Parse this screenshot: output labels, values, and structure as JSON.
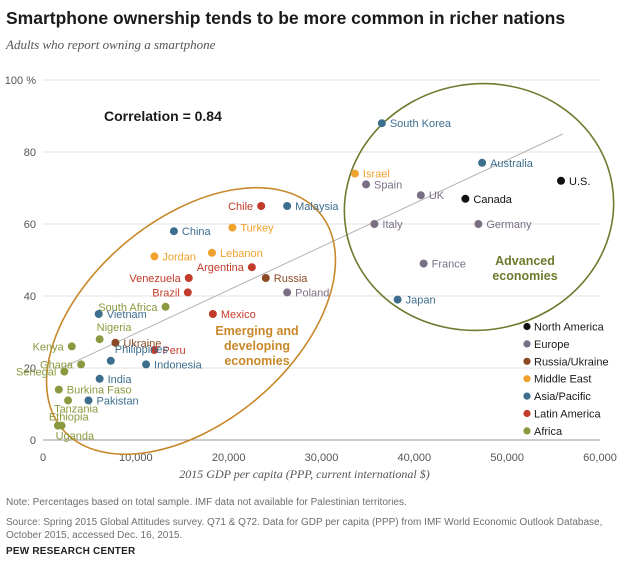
{
  "title": "Smartphone ownership tends to be more common in richer nations",
  "subtitle": "Adults who report owning a smartphone",
  "note": "Note: Percentages based on total sample. IMF data not available for Palestinian territories.",
  "source": "Source: Spring 2015 Global Attitudes survey. Q71 & Q72. Data for GDP per capita (PPP) from IMF World Economic Outlook Database, October 2015, accessed Dec. 16, 2015.",
  "brand": "PEW RESEARCH CENTER",
  "chart_data": {
    "type": "scatter",
    "title": "Smartphone ownership tends to be more common in richer nations",
    "xlabel": "2015 GDP per capita (PPP, current international $)",
    "ylabel": "Adults who report owning a smartphone",
    "xlim": [
      0,
      60000
    ],
    "ylim": [
      0,
      100
    ],
    "x_ticks": [
      0,
      10000,
      20000,
      30000,
      40000,
      50000,
      60000
    ],
    "x_tick_labels": [
      "0",
      "10,000",
      "20,000",
      "30,000",
      "40,000",
      "50,000",
      "60,000"
    ],
    "y_ticks": [
      0,
      20,
      40,
      60,
      80,
      100
    ],
    "y_tick_labels": [
      "0",
      "20",
      "40",
      "60",
      "80",
      "100 %"
    ],
    "grid": "horizontal",
    "annotation": "Correlation = 0.84",
    "trendline": {
      "x": [
        2000,
        56000
      ],
      "y": [
        20,
        85
      ]
    },
    "groups": [
      {
        "label": "Emerging and developing economies",
        "color": "#c8882a"
      },
      {
        "label": "Advanced economies",
        "color": "#6e7a2e"
      }
    ],
    "legend": {
      "position": "right",
      "entries": [
        {
          "name": "North America",
          "color": "#111111"
        },
        {
          "name": "Europe",
          "color": "#7a6e84"
        },
        {
          "name": "Russia/Ukraine",
          "color": "#8b4a24"
        },
        {
          "name": "Middle East",
          "color": "#f0a22e"
        },
        {
          "name": "Asia/Pacific",
          "color": "#3d6e8e"
        },
        {
          "name": "Latin America",
          "color": "#c23b2b"
        },
        {
          "name": "Africa",
          "color": "#8b9a40"
        }
      ]
    },
    "points": [
      {
        "name": "U.S.",
        "region": "North America",
        "x": 55800,
        "y": 72
      },
      {
        "name": "Canada",
        "region": "North America",
        "x": 45500,
        "y": 67
      },
      {
        "name": "Australia",
        "region": "Asia/Pacific",
        "x": 47300,
        "y": 77
      },
      {
        "name": "South Korea",
        "region": "Asia/Pacific",
        "x": 36500,
        "y": 88
      },
      {
        "name": "Japan",
        "region": "Asia/Pacific",
        "x": 38200,
        "y": 39
      },
      {
        "name": "Israel",
        "region": "Middle East",
        "x": 33600,
        "y": 74
      },
      {
        "name": "Spain",
        "region": "Europe",
        "x": 34800,
        "y": 71
      },
      {
        "name": "UK",
        "region": "Europe",
        "x": 40700,
        "y": 68
      },
      {
        "name": "Italy",
        "region": "Europe",
        "x": 35700,
        "y": 60
      },
      {
        "name": "Germany",
        "region": "Europe",
        "x": 46900,
        "y": 60
      },
      {
        "name": "France",
        "region": "Europe",
        "x": 41000,
        "y": 49
      },
      {
        "name": "Poland",
        "region": "Europe",
        "x": 26300,
        "y": 41
      },
      {
        "name": "Chile",
        "region": "Latin America",
        "x": 23500,
        "y": 65
      },
      {
        "name": "Malaysia",
        "region": "Asia/Pacific",
        "x": 26300,
        "y": 65
      },
      {
        "name": "China",
        "region": "Asia/Pacific",
        "x": 14100,
        "y": 58
      },
      {
        "name": "Turkey",
        "region": "Middle East",
        "x": 20400,
        "y": 59
      },
      {
        "name": "Jordan",
        "region": "Middle East",
        "x": 12000,
        "y": 51
      },
      {
        "name": "Lebanon",
        "region": "Middle East",
        "x": 18200,
        "y": 52
      },
      {
        "name": "Argentina",
        "region": "Latin America",
        "x": 22500,
        "y": 48
      },
      {
        "name": "Venezuela",
        "region": "Latin America",
        "x": 15700,
        "y": 45
      },
      {
        "name": "Russia",
        "region": "Russia/Ukraine",
        "x": 24000,
        "y": 45
      },
      {
        "name": "Brazil",
        "region": "Latin America",
        "x": 15600,
        "y": 41
      },
      {
        "name": "South Africa",
        "region": "Africa",
        "x": 13200,
        "y": 37
      },
      {
        "name": "Vietnam",
        "region": "Asia/Pacific",
        "x": 6000,
        "y": 35
      },
      {
        "name": "Mexico",
        "region": "Latin America",
        "x": 18300,
        "y": 35
      },
      {
        "name": "Nigeria",
        "region": "Africa",
        "x": 6100,
        "y": 28
      },
      {
        "name": "Ukraine",
        "region": "Russia/Ukraine",
        "x": 7800,
        "y": 27
      },
      {
        "name": "Kenya",
        "region": "Africa",
        "x": 3100,
        "y": 26
      },
      {
        "name": "Peru",
        "region": "Latin America",
        "x": 12000,
        "y": 25
      },
      {
        "name": "Philippines",
        "region": "Asia/Pacific",
        "x": 7300,
        "y": 22
      },
      {
        "name": "Indonesia",
        "region": "Asia/Pacific",
        "x": 11100,
        "y": 21
      },
      {
        "name": "Ghana",
        "region": "Africa",
        "x": 4100,
        "y": 21
      },
      {
        "name": "Senegal",
        "region": "Africa",
        "x": 2300,
        "y": 19
      },
      {
        "name": "India",
        "region": "Asia/Pacific",
        "x": 6100,
        "y": 17
      },
      {
        "name": "Burkina Faso",
        "region": "Africa",
        "x": 1700,
        "y": 14
      },
      {
        "name": "Tanzania",
        "region": "Africa",
        "x": 2700,
        "y": 11
      },
      {
        "name": "Pakistan",
        "region": "Asia/Pacific",
        "x": 4900,
        "y": 11
      },
      {
        "name": "Ethiopia",
        "region": "Africa",
        "x": 1600,
        "y": 4
      },
      {
        "name": "Uganda",
        "region": "Africa",
        "x": 2000,
        "y": 4
      }
    ]
  }
}
